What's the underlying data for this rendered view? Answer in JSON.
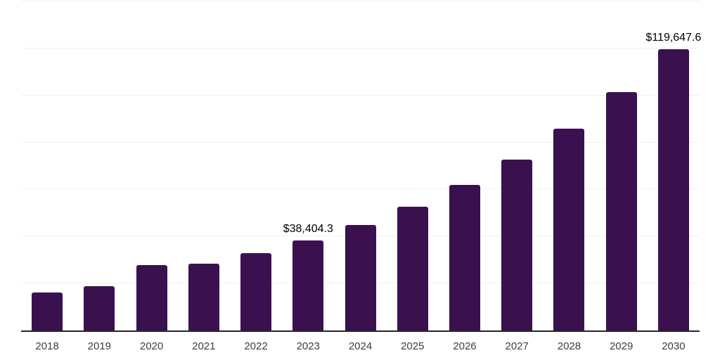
{
  "chart_data": {
    "type": "bar",
    "title": "",
    "xlabel": "",
    "ylabel": "",
    "categories": [
      "2018",
      "2019",
      "2020",
      "2021",
      "2022",
      "2023",
      "2024",
      "2025",
      "2026",
      "2027",
      "2028",
      "2029",
      "2030"
    ],
    "values": [
      16150,
      18850,
      27800,
      28400,
      32900,
      38404.3,
      44900,
      52700,
      61900,
      72700,
      85900,
      101400,
      119647.6
    ],
    "data_labels": [
      null,
      null,
      null,
      null,
      null,
      "$38,404.3",
      null,
      null,
      null,
      null,
      null,
      null,
      "$119,647.6"
    ],
    "ylim": [
      0,
      140000
    ],
    "gridline_step": 20000,
    "grid": true,
    "legend": false,
    "bar_color": "#3a114e",
    "gridline_color": "#f0f0f0",
    "axis_line_color": "#262626",
    "tick_label_color": "#3d3d3d",
    "data_label_color": "#000000",
    "background_color": "#ffffff"
  }
}
